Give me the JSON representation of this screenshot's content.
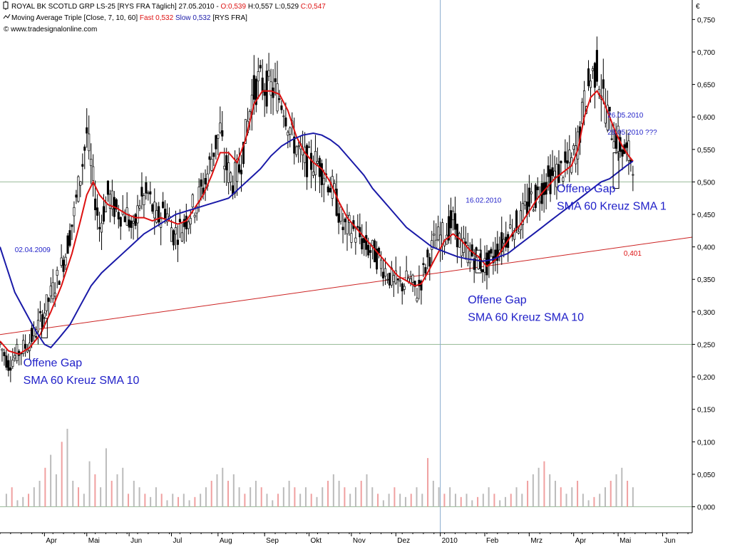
{
  "header": {
    "line1": {
      "instrument": "ROYAL BK SCOTLD GRP LS-25 [RYS FRA  Täglich] 27.05.2010 - ",
      "open": "O:0,539",
      "hlc": " H:0,557 L:0,529 ",
      "close": "C:0,547"
    },
    "line2": {
      "indicator": "Moving Average Triple [Close, 7, 10, 60] ",
      "fast_label": "Fast 0,532",
      "slow_label": " Slow 0,532",
      "suffix": " [RYS FRA]"
    },
    "line3": "© www.tradesignalonline.com",
    "currency": "€"
  },
  "colors": {
    "fast": "#dd1111",
    "slow": "#1a1aa8",
    "trendline": "#cc2222",
    "candle": "#000000",
    "volume_up": "#bbbbbb",
    "volume_down": "#f0a0a0",
    "grid_h": "#99bb99",
    "grid_v": "#88aacc",
    "annotation": "#1f1fc8",
    "open_red": "#dd1111",
    "close_red": "#dd1111"
  },
  "chart_data": {
    "type": "line",
    "subtype": "candlestick with triple moving average and volume",
    "x_tick_labels": [
      "Apr",
      "Mai",
      "Jun",
      "Jul",
      "Aug",
      "Sep",
      "Okt",
      "Nov",
      "Dez",
      "2010",
      "Feb",
      "Mrz",
      "Apr",
      "Mai",
      "Jun"
    ],
    "y_tick_labels": [
      "0,750",
      "0,700",
      "0,650",
      "0,600",
      "0,550",
      "0,500",
      "0,450",
      "0,400",
      "0,350",
      "0,300",
      "0,250",
      "0,200",
      "0,150",
      "0,100",
      "0,050",
      "0,000"
    ],
    "y_range": [
      -0.04,
      0.78
    ],
    "grid_lines": [
      0.5,
      0.25,
      0.0
    ],
    "grid_vertical_at": "2010",
    "x_range": [
      0,
      327
    ],
    "x_ticks_at": [
      21,
      41,
      61,
      81,
      103,
      125,
      146,
      166,
      187,
      208,
      229,
      250,
      271,
      292,
      313
    ],
    "price_path": [
      [
        0,
        0.25
      ],
      [
        4,
        0.22
      ],
      [
        8,
        0.235
      ],
      [
        13,
        0.25
      ],
      [
        17,
        0.27
      ],
      [
        22,
        0.31
      ],
      [
        27,
        0.35
      ],
      [
        31,
        0.39
      ],
      [
        35,
        0.45
      ],
      [
        39,
        0.53
      ],
      [
        41,
        0.575
      ],
      [
        44,
        0.5
      ],
      [
        47,
        0.43
      ],
      [
        51,
        0.48
      ],
      [
        55,
        0.455
      ],
      [
        60,
        0.45
      ],
      [
        63,
        0.42
      ],
      [
        66,
        0.47
      ],
      [
        70,
        0.48
      ],
      [
        74,
        0.44
      ],
      [
        78,
        0.46
      ],
      [
        82,
        0.42
      ],
      [
        86,
        0.43
      ],
      [
        89,
        0.45
      ],
      [
        93,
        0.47
      ],
      [
        97,
        0.5
      ],
      [
        101,
        0.55
      ],
      [
        104,
        0.58
      ],
      [
        106,
        0.53
      ],
      [
        110,
        0.5
      ],
      [
        113,
        0.52
      ],
      [
        116,
        0.57
      ],
      [
        119,
        0.63
      ],
      [
        122,
        0.655
      ],
      [
        126,
        0.645
      ],
      [
        130,
        0.64
      ],
      [
        134,
        0.62
      ],
      [
        138,
        0.57
      ],
      [
        142,
        0.54
      ],
      [
        146,
        0.53
      ],
      [
        150,
        0.53
      ],
      [
        154,
        0.51
      ],
      [
        158,
        0.48
      ],
      [
        162,
        0.43
      ],
      [
        165,
        0.43
      ],
      [
        169,
        0.42
      ],
      [
        173,
        0.4
      ],
      [
        177,
        0.39
      ],
      [
        181,
        0.37
      ],
      [
        185,
        0.35
      ],
      [
        189,
        0.34
      ],
      [
        193,
        0.35
      ],
      [
        197,
        0.33
      ],
      [
        200,
        0.36
      ],
      [
        203,
        0.39
      ],
      [
        206,
        0.41
      ],
      [
        210,
        0.42
      ],
      [
        214,
        0.44
      ],
      [
        218,
        0.4
      ],
      [
        222,
        0.39
      ],
      [
        226,
        0.38
      ],
      [
        229,
        0.37
      ],
      [
        231,
        0.375
      ],
      [
        234,
        0.39
      ],
      [
        238,
        0.41
      ],
      [
        242,
        0.43
      ],
      [
        246,
        0.44
      ],
      [
        250,
        0.47
      ],
      [
        254,
        0.48
      ],
      [
        258,
        0.5
      ],
      [
        262,
        0.51
      ],
      [
        266,
        0.52
      ],
      [
        270,
        0.53
      ],
      [
        273,
        0.56
      ],
      [
        276,
        0.62
      ],
      [
        279,
        0.66
      ],
      [
        282,
        0.675
      ],
      [
        285,
        0.63
      ],
      [
        288,
        0.59
      ],
      [
        291,
        0.57
      ],
      [
        294,
        0.55
      ],
      [
        297,
        0.54
      ],
      [
        299,
        0.535
      ]
    ],
    "series": [
      {
        "name": "Fast 0,532",
        "color": "#dd1111",
        "points": [
          [
            0,
            0.255
          ],
          [
            4,
            0.24
          ],
          [
            9,
            0.235
          ],
          [
            14,
            0.245
          ],
          [
            19,
            0.265
          ],
          [
            24,
            0.3
          ],
          [
            29,
            0.34
          ],
          [
            34,
            0.39
          ],
          [
            38,
            0.44
          ],
          [
            41,
            0.48
          ],
          [
            44,
            0.5
          ],
          [
            47,
            0.48
          ],
          [
            51,
            0.465
          ],
          [
            55,
            0.46
          ],
          [
            60,
            0.45
          ],
          [
            64,
            0.445
          ],
          [
            68,
            0.445
          ],
          [
            72,
            0.44
          ],
          [
            76,
            0.445
          ],
          [
            80,
            0.44
          ],
          [
            84,
            0.435
          ],
          [
            88,
            0.44
          ],
          [
            92,
            0.46
          ],
          [
            96,
            0.48
          ],
          [
            100,
            0.51
          ],
          [
            104,
            0.545
          ],
          [
            108,
            0.545
          ],
          [
            112,
            0.53
          ],
          [
            116,
            0.565
          ],
          [
            120,
            0.62
          ],
          [
            124,
            0.64
          ],
          [
            128,
            0.64
          ],
          [
            132,
            0.635
          ],
          [
            136,
            0.61
          ],
          [
            140,
            0.57
          ],
          [
            144,
            0.545
          ],
          [
            148,
            0.53
          ],
          [
            152,
            0.52
          ],
          [
            156,
            0.5
          ],
          [
            160,
            0.47
          ],
          [
            164,
            0.445
          ],
          [
            168,
            0.43
          ],
          [
            172,
            0.415
          ],
          [
            176,
            0.4
          ],
          [
            180,
            0.385
          ],
          [
            184,
            0.37
          ],
          [
            188,
            0.355
          ],
          [
            192,
            0.348
          ],
          [
            196,
            0.34
          ],
          [
            199,
            0.343
          ],
          [
            202,
            0.36
          ],
          [
            206,
            0.385
          ],
          [
            210,
            0.41
          ],
          [
            214,
            0.42
          ],
          [
            218,
            0.41
          ],
          [
            222,
            0.395
          ],
          [
            226,
            0.385
          ],
          [
            230,
            0.37
          ],
          [
            234,
            0.38
          ],
          [
            238,
            0.4
          ],
          [
            242,
            0.42
          ],
          [
            246,
            0.435
          ],
          [
            250,
            0.455
          ],
          [
            254,
            0.475
          ],
          [
            258,
            0.49
          ],
          [
            262,
            0.505
          ],
          [
            266,
            0.515
          ],
          [
            270,
            0.525
          ],
          [
            273,
            0.55
          ],
          [
            276,
            0.6
          ],
          [
            279,
            0.63
          ],
          [
            282,
            0.64
          ],
          [
            285,
            0.625
          ],
          [
            288,
            0.6
          ],
          [
            291,
            0.575
          ],
          [
            294,
            0.555
          ],
          [
            297,
            0.54
          ],
          [
            299,
            0.532
          ]
        ]
      },
      {
        "name": "Slow 0,532",
        "color": "#1a1aa8",
        "points": [
          [
            0,
            0.4
          ],
          [
            3,
            0.37
          ],
          [
            7,
            0.33
          ],
          [
            12,
            0.3
          ],
          [
            17,
            0.27
          ],
          [
            21,
            0.25
          ],
          [
            24,
            0.245
          ],
          [
            28,
            0.26
          ],
          [
            33,
            0.28
          ],
          [
            38,
            0.31
          ],
          [
            43,
            0.34
          ],
          [
            48,
            0.36
          ],
          [
            53,
            0.375
          ],
          [
            58,
            0.39
          ],
          [
            63,
            0.405
          ],
          [
            68,
            0.42
          ],
          [
            73,
            0.43
          ],
          [
            78,
            0.44
          ],
          [
            83,
            0.45
          ],
          [
            88,
            0.455
          ],
          [
            93,
            0.46
          ],
          [
            98,
            0.465
          ],
          [
            103,
            0.47
          ],
          [
            108,
            0.475
          ],
          [
            113,
            0.49
          ],
          [
            118,
            0.505
          ],
          [
            123,
            0.52
          ],
          [
            128,
            0.54
          ],
          [
            133,
            0.555
          ],
          [
            138,
            0.565
          ],
          [
            143,
            0.572
          ],
          [
            148,
            0.575
          ],
          [
            152,
            0.572
          ],
          [
            156,
            0.565
          ],
          [
            160,
            0.555
          ],
          [
            164,
            0.54
          ],
          [
            168,
            0.525
          ],
          [
            172,
            0.51
          ],
          [
            176,
            0.49
          ],
          [
            180,
            0.475
          ],
          [
            184,
            0.46
          ],
          [
            188,
            0.445
          ],
          [
            192,
            0.43
          ],
          [
            196,
            0.42
          ],
          [
            200,
            0.41
          ],
          [
            204,
            0.4
          ],
          [
            208,
            0.395
          ],
          [
            212,
            0.39
          ],
          [
            216,
            0.385
          ],
          [
            220,
            0.382
          ],
          [
            224,
            0.38
          ],
          [
            228,
            0.378
          ],
          [
            232,
            0.38
          ],
          [
            236,
            0.385
          ],
          [
            240,
            0.39
          ],
          [
            244,
            0.4
          ],
          [
            248,
            0.41
          ],
          [
            252,
            0.42
          ],
          [
            256,
            0.43
          ],
          [
            260,
            0.44
          ],
          [
            264,
            0.45
          ],
          [
            268,
            0.46
          ],
          [
            272,
            0.47
          ],
          [
            276,
            0.48
          ],
          [
            280,
            0.49
          ],
          [
            284,
            0.5
          ],
          [
            288,
            0.505
          ],
          [
            292,
            0.515
          ],
          [
            296,
            0.525
          ],
          [
            299,
            0.532
          ]
        ]
      }
    ],
    "trendline": {
      "from": [
        0,
        0.265
      ],
      "to": [
        327,
        0.415
      ]
    },
    "trendline_label": "0,401",
    "volume_scale": "0,000 … 0,100",
    "volume": [
      0.02,
      0.03,
      0.01,
      0.015,
      0.02,
      0.03,
      0.04,
      0.06,
      0.08,
      0.05,
      0.1,
      0.12,
      0.04,
      0.03,
      0.02,
      0.07,
      0.05,
      0.03,
      0.09,
      0.04,
      0.05,
      0.06,
      0.02,
      0.04,
      0.03,
      0.02,
      0.015,
      0.03,
      0.02,
      0.01,
      0.02,
      0.015,
      0.02,
      0.01,
      0.015,
      0.02,
      0.03,
      0.04,
      0.05,
      0.06,
      0.04,
      0.05,
      0.03,
      0.02,
      0.03,
      0.04,
      0.03,
      0.02,
      0.01,
      0.02,
      0.03,
      0.04,
      0.03,
      0.02,
      0.03,
      0.02,
      0.015,
      0.03,
      0.04,
      0.05,
      0.04,
      0.03,
      0.02,
      0.03,
      0.04,
      0.05,
      0.03,
      0.02,
      0.01,
      0.02,
      0.03,
      0.02,
      0.015,
      0.02,
      0.03,
      0.02,
      0.075,
      0.04,
      0.03,
      0.02,
      0.03,
      0.02,
      0.015,
      0.02,
      0.01,
      0.015,
      0.02,
      0.03,
      0.02,
      0.01,
      0.015,
      0.02,
      0.03,
      0.02,
      0.04,
      0.05,
      0.06,
      0.07,
      0.05,
      0.04,
      0.03,
      0.02,
      0.03,
      0.04,
      0.02,
      0.01,
      0.015,
      0.02,
      0.03,
      0.04,
      0.05,
      0.06,
      0.04,
      0.03
    ],
    "annotations": [
      {
        "text": "02.04.2009",
        "at": [
          7,
          0.392
        ],
        "size": "small"
      },
      {
        "text": "Offene Gap",
        "at": [
          11,
          0.216
        ],
        "size": "big"
      },
      {
        "text": "SMA 60 Kreuz SMA 10",
        "at": [
          11,
          0.189
        ],
        "size": "big"
      },
      {
        "text": "16.02.2010",
        "at": [
          220,
          0.468
        ],
        "size": "small"
      },
      {
        "text": "Offene Gap",
        "at": [
          221,
          0.313
        ],
        "size": "big"
      },
      {
        "text": "SMA 60 Kreuz SMA 10",
        "at": [
          221,
          0.286
        ],
        "size": "big"
      },
      {
        "text": "26.05.2010",
        "at": [
          287,
          0.599
        ],
        "size": "small"
      },
      {
        "text": "28.05.2010 ???",
        "at": [
          287,
          0.573
        ],
        "size": "small"
      },
      {
        "text": "Offene Gap",
        "at": [
          263,
          0.484
        ],
        "size": "big"
      },
      {
        "text": "SMA 60 Kreuz SMA 1",
        "at": [
          263,
          0.457
        ],
        "size": "big"
      }
    ],
    "gap_boxes": [
      {
        "x": 21,
        "y0": 0.26,
        "y1": 0.29
      },
      {
        "x": 226,
        "y0": 0.36,
        "y1": 0.395
      },
      {
        "x": 291,
        "y0": 0.49,
        "y1": 0.545
      }
    ]
  }
}
